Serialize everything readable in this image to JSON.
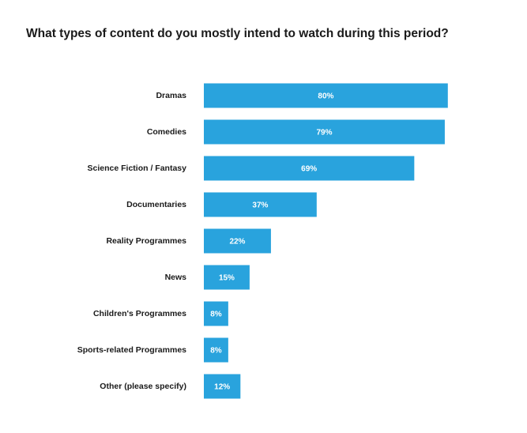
{
  "chart_data": {
    "type": "bar",
    "orientation": "horizontal",
    "title": "What types of content do you mostly intend to watch during this period?",
    "categories": [
      "Dramas",
      "Comedies",
      "Science Fiction / Fantasy",
      "Documentaries",
      "Reality Programmes",
      "News",
      "Children's Programmes",
      "Sports-related Programmes",
      "Other (please specify)"
    ],
    "values": [
      80,
      79,
      69,
      37,
      22,
      15,
      8,
      8,
      12
    ],
    "value_labels": [
      "80%",
      "79%",
      "69%",
      "37%",
      "22%",
      "15%",
      "8%",
      "8%",
      "12%"
    ],
    "unit": "%",
    "xlim": [
      0,
      100
    ],
    "grid": false,
    "legend": "none",
    "bar_color": "#29a3dd"
  }
}
